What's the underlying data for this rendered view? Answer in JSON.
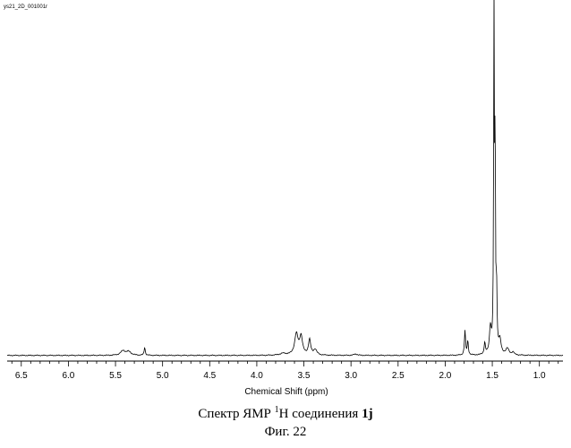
{
  "file_label": "ys21_2D_001001r",
  "caption": {
    "prefix": "Спектр ЯМР ",
    "sup": "1",
    "middle": "H соединения ",
    "compound": "1j"
  },
  "figure_label": "Фиг. 22",
  "chart_data": {
    "type": "line",
    "title": "",
    "xlabel": "Chemical Shift (ppm)",
    "ylabel": "",
    "xlim": [
      6.65,
      0.75
    ],
    "ylim": [
      0,
      100
    ],
    "x_reversed": true,
    "grid": false,
    "x_ticks": [
      "6.5",
      "6.0",
      "5.5",
      "5.0",
      "4.5",
      "4.0",
      "3.5",
      "3.0",
      "2.5",
      "2.0",
      "1.5",
      "1.0"
    ],
    "baseline": 0.6,
    "peaks": [
      {
        "x": 5.42,
        "height": 1.3,
        "width": 0.03
      },
      {
        "x": 5.36,
        "height": 1.0,
        "width": 0.03
      },
      {
        "x": 5.19,
        "height": 2.3,
        "width": 0.007
      },
      {
        "x": 3.72,
        "height": 0.5,
        "width": 0.04
      },
      {
        "x": 3.58,
        "height": 6.0,
        "width": 0.022
      },
      {
        "x": 3.53,
        "height": 5.2,
        "width": 0.018
      },
      {
        "x": 3.44,
        "height": 4.4,
        "width": 0.014
      },
      {
        "x": 3.38,
        "height": 1.6,
        "width": 0.02
      },
      {
        "x": 2.95,
        "height": 0.4,
        "width": 0.02
      },
      {
        "x": 1.79,
        "height": 7.0,
        "width": 0.007
      },
      {
        "x": 1.76,
        "height": 4.0,
        "width": 0.007
      },
      {
        "x": 1.58,
        "height": 3.3,
        "width": 0.008
      },
      {
        "x": 1.52,
        "height": 7.5,
        "width": 0.012
      },
      {
        "x": 1.482,
        "height": 100,
        "width": 0.0045
      },
      {
        "x": 1.47,
        "height": 62,
        "width": 0.004
      },
      {
        "x": 1.455,
        "height": 18,
        "width": 0.006
      },
      {
        "x": 1.42,
        "height": 4.0,
        "width": 0.015
      },
      {
        "x": 1.34,
        "height": 1.8,
        "width": 0.02
      },
      {
        "x": 1.28,
        "height": 0.8,
        "width": 0.015
      }
    ]
  }
}
